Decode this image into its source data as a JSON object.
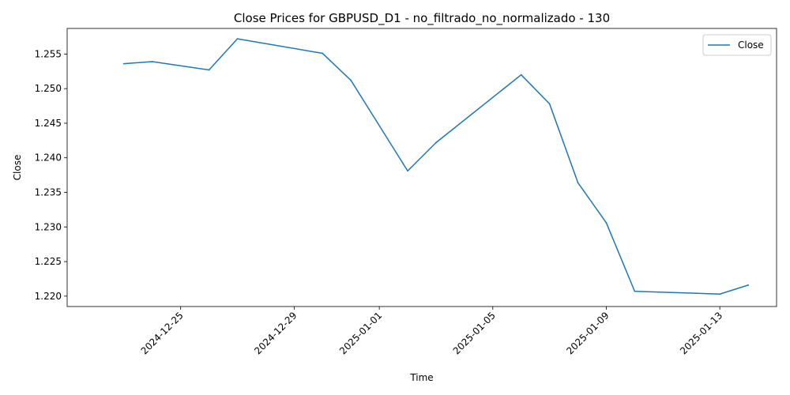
{
  "chart_data": {
    "type": "line",
    "title": "Close Prices for GBPUSD_D1 - no_filtrado_no_normalizado - 130",
    "xlabel": "Time",
    "ylabel": "Close",
    "xlim": [
      "2024-12-21",
      "2025-01-15"
    ],
    "ylim": [
      1.2185,
      1.2587
    ],
    "x_ticks": [
      "2024-12-25",
      "2024-12-29",
      "2025-01-01",
      "2025-01-05",
      "2025-01-09",
      "2025-01-13"
    ],
    "y_ticks": [
      "1.220",
      "1.225",
      "1.230",
      "1.235",
      "1.240",
      "1.245",
      "1.250",
      "1.255"
    ],
    "grid": false,
    "legend_position": "top-right",
    "series": [
      {
        "name": "Close",
        "color": "#1f77b4",
        "x": [
          "2024-12-23",
          "2024-12-24",
          "2024-12-26",
          "2024-12-27",
          "2024-12-30",
          "2024-12-31",
          "2025-01-02",
          "2025-01-03",
          "2025-01-06",
          "2025-01-07",
          "2025-01-08",
          "2025-01-09",
          "2025-01-10",
          "2025-01-13",
          "2025-01-14"
        ],
        "values": [
          1.2536,
          1.2539,
          1.2527,
          1.2572,
          1.2551,
          1.2512,
          1.2381,
          1.2422,
          1.252,
          1.2478,
          1.2364,
          1.2306,
          1.2207,
          1.2203,
          1.2216
        ]
      }
    ]
  }
}
